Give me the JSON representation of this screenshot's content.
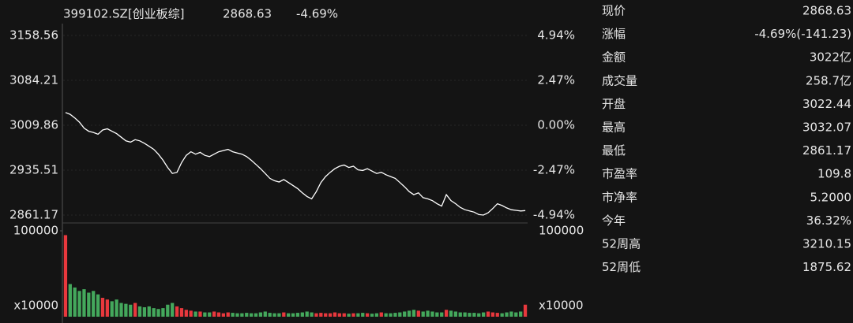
{
  "header": {
    "symbol": "399102.SZ[创业板综]",
    "price": "2868.63",
    "change": "-4.69%",
    "color": "#44a85c"
  },
  "up_color": "#e8383d",
  "down_color": "#44a85c",
  "chart_data": [
    {
      "type": "line",
      "color": "#ffffff",
      "values": [
        3031,
        3028,
        3022,
        3015,
        3005,
        3000,
        2998,
        2995,
        3002,
        3004,
        3000,
        2996,
        2990,
        2984,
        2982,
        2986,
        2984,
        2980,
        2975,
        2970,
        2962,
        2952,
        2940,
        2930,
        2932,
        2948,
        2960,
        2966,
        2962,
        2965,
        2960,
        2958,
        2962,
        2966,
        2968,
        2970,
        2966,
        2964,
        2962,
        2958,
        2952,
        2945,
        2938,
        2930,
        2922,
        2918,
        2916,
        2920,
        2915,
        2910,
        2905,
        2898,
        2892,
        2888,
        2900,
        2915,
        2925,
        2932,
        2938,
        2942,
        2944,
        2940,
        2942,
        2936,
        2935,
        2938,
        2934,
        2930,
        2932,
        2928,
        2925,
        2922,
        2915,
        2908,
        2900,
        2895,
        2898,
        2890,
        2888,
        2885,
        2880,
        2876,
        2895,
        2885,
        2880,
        2874,
        2870,
        2868,
        2866,
        2862,
        2861.17,
        2865,
        2872,
        2880,
        2877,
        2873,
        2870,
        2869,
        2868,
        2868.63
      ],
      "ylim": [
        2861.17,
        3158.56
      ],
      "yticks": [
        3158.56,
        3084.21,
        3009.86,
        2935.51,
        2861.17
      ],
      "y2lim": [
        -4.94,
        4.94
      ],
      "y2ticks": [
        {
          "value": 4.94,
          "label": "4.94%"
        },
        {
          "value": 2.47,
          "label": "2.47%"
        },
        {
          "value": 0,
          "label": "0.00%"
        },
        {
          "value": -2.47,
          "label": "-2.47%"
        },
        {
          "value": -4.94,
          "label": "-4.94%"
        }
      ]
    },
    {
      "type": "bar",
      "unit": "x10000",
      "values": [
        95000,
        38000,
        34000,
        30000,
        32000,
        28000,
        30000,
        26000,
        22000,
        20000,
        18000,
        20000,
        16000,
        15000,
        14000,
        16000,
        12000,
        11000,
        12000,
        10000,
        9000,
        10000,
        14000,
        16000,
        12000,
        10000,
        8000,
        7000,
        6000,
        6000,
        5000,
        5000,
        6000,
        5000,
        4000,
        5000,
        4500,
        4000,
        4000,
        4500,
        4000,
        4000,
        5000,
        6000,
        4500,
        4000,
        4000,
        5000,
        4000,
        4000,
        4500,
        5000,
        6000,
        5000,
        4000,
        4500,
        4000,
        4000,
        5000,
        4000,
        4000,
        3500,
        4000,
        4000,
        4500,
        4000,
        3500,
        4000,
        5000,
        4000,
        4000,
        4500,
        5000,
        6000,
        7000,
        8000,
        7000,
        6000,
        7000,
        6000,
        5000,
        5000,
        8000,
        7000,
        6000,
        5000,
        5000,
        4500,
        4500,
        4000,
        5000,
        6000,
        5000,
        4500,
        4000,
        5000,
        6000,
        5000,
        6000,
        14000
      ],
      "ylim": [
        0,
        100000
      ],
      "yticks": [
        100000
      ]
    }
  ],
  "panel": [
    {
      "label": "现价",
      "value": "2868.63",
      "color": "#44a85c"
    },
    {
      "label": "涨幅",
      "value": "-4.69%(-141.23)",
      "color": "#44a85c"
    },
    {
      "label": "金额",
      "value": "3022亿",
      "color": "#e6e6e6"
    },
    {
      "label": "成交量",
      "value": "258.7亿",
      "color": "#e6e6e6"
    },
    {
      "label": "开盘",
      "value": "3022.44",
      "color": "#e8383d"
    },
    {
      "label": "最高",
      "value": "3032.07",
      "color": "#e8383d"
    },
    {
      "label": "最低",
      "value": "2861.17",
      "color": "#44a85c"
    },
    {
      "label": "市盈率",
      "value": "109.8",
      "color": "#e6e6e6"
    },
    {
      "label": "市净率",
      "value": "5.2000",
      "color": "#e6e6e6"
    },
    {
      "label": "今年",
      "value": "36.32%",
      "color": "#e8383d"
    },
    {
      "label": "52周高",
      "value": "3210.15",
      "color": "#e6e6e6"
    },
    {
      "label": "52周低",
      "value": "1875.62",
      "color": "#e6e6e6"
    }
  ]
}
